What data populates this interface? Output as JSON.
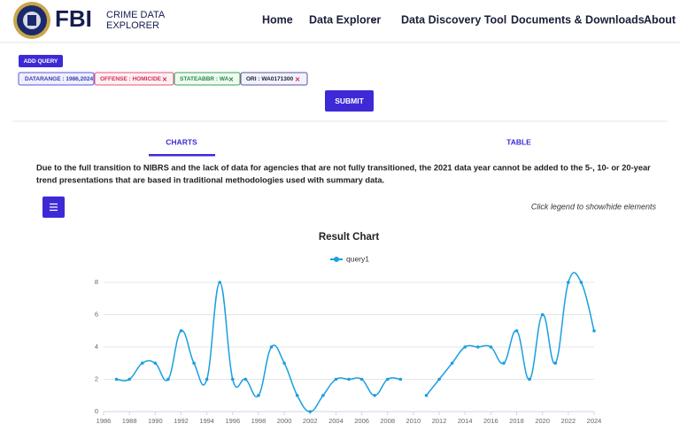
{
  "header": {
    "logo": "FBI",
    "subtitle_lines": [
      "CRIME DATA",
      "EXPLORER"
    ],
    "nav": [
      "Home",
      "Data Explorer",
      "Data Discovery Tool",
      "Documents & Downloads",
      "About"
    ]
  },
  "query": {
    "add_query": "ADD QUERY",
    "filters": [
      "DATARANGE : 1986,2024",
      "OFFENSE : HOMICIDE",
      "STATEABBR : WA",
      "ORI : WA0171300"
    ],
    "submit": "SUBMIT"
  },
  "tabs": [
    "CHARTS",
    "TABLE"
  ],
  "notice": [
    "Due to the full transition to NIBRS and the lack of data for agencies that are not fully transitioned, the 2021 data year cannot be added to the 5-, 10- or 20-year",
    "trend presentations that are based in traditional methodologies used with summary data."
  ],
  "hint": "Click legend to show/hide elements",
  "chart_data": {
    "type": "line",
    "title": "Result Chart",
    "x": [
      1987,
      1988,
      1989,
      1990,
      1991,
      1992,
      1993,
      1994,
      1995,
      1996,
      1997,
      1998,
      1999,
      2000,
      2001,
      2002,
      2003,
      2004,
      2005,
      2006,
      2007,
      2008,
      2009,
      2010,
      2011,
      2012,
      2013,
      2014,
      2015,
      2016,
      2017,
      2018,
      2019,
      2020,
      2021,
      2022,
      2023,
      2024
    ],
    "series": [
      {
        "name": "query1",
        "color": "#1a9fe0",
        "values": [
          2,
          2,
          3,
          3,
          2,
          5,
          3,
          2,
          8,
          2,
          2,
          1,
          4,
          3,
          1,
          0,
          1,
          2,
          2,
          2,
          1,
          2,
          2,
          null,
          1,
          2,
          3,
          4,
          4,
          4,
          3,
          5,
          2,
          6,
          3,
          8,
          8,
          5
        ]
      }
    ],
    "xlim": [
      1986,
      2024
    ],
    "xticks": [
      1986,
      1988,
      1990,
      1992,
      1994,
      1996,
      1998,
      2000,
      2002,
      2004,
      2006,
      2008,
      2010,
      2012,
      2014,
      2016,
      2018,
      2020,
      2022,
      2024
    ],
    "ylim": [
      0,
      8
    ],
    "yticks": [
      0,
      2,
      4,
      6,
      8
    ],
    "grid": true,
    "legend": "top"
  }
}
